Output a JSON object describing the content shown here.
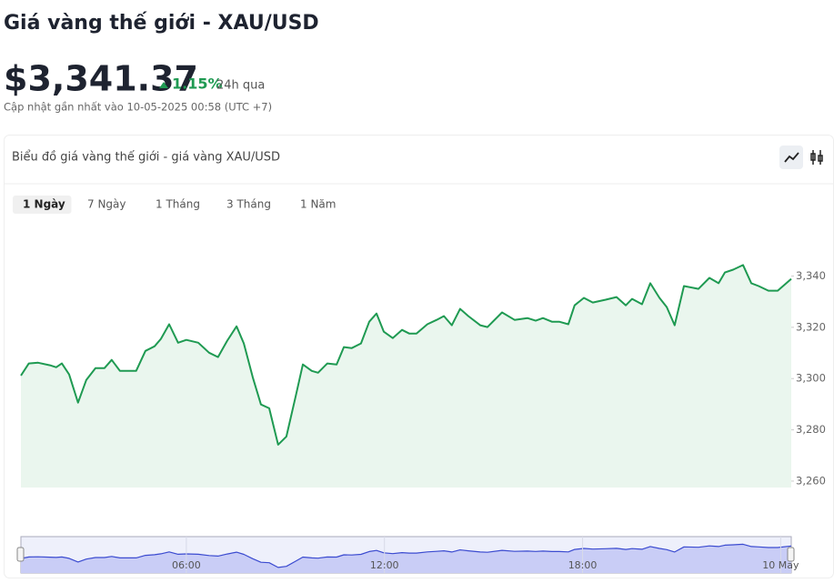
{
  "header": {
    "title": "Giá vàng thế giới - XAU/USD",
    "price": "$3,341.37",
    "change": "1.15%",
    "change_period": "24h qua",
    "updated": "Cập nhật gần nhất vào 10-05-2025 00:58 (UTC +7)"
  },
  "card": {
    "title": "Biểu đồ giá vàng thế giới - giá vàng XAU/USD",
    "tabs": [
      "1 Ngày",
      "7 Ngày",
      "1 Tháng",
      "3 Tháng",
      "1 Năm"
    ],
    "active_tab": 0
  },
  "chart_data": {
    "type": "area",
    "color": "#1f9a52",
    "fill": "#eaf6ee",
    "navigator_color": "#3b4bd0",
    "navigator_fill": "#c9cdf6",
    "x": [
      0.99,
      1.23,
      1.51,
      1.87,
      2.06,
      2.23,
      2.45,
      2.72,
      2.97,
      3.25,
      3.52,
      3.74,
      3.99,
      4.48,
      4.76,
      5.04,
      5.23,
      5.48,
      5.75,
      6.0,
      6.36,
      6.69,
      6.96,
      7.24,
      7.52,
      7.74,
      8.01,
      8.26,
      8.51,
      8.78,
      9.03,
      9.31,
      9.53,
      9.8,
      9.99,
      10.27,
      10.55,
      10.77,
      11.01,
      11.29,
      11.54,
      11.76,
      11.98,
      12.25,
      12.53,
      12.75,
      12.97,
      13.3,
      13.58,
      13.8,
      14.04,
      14.29,
      14.54,
      14.9,
      15.12,
      15.56,
      15.94,
      16.33,
      16.58,
      16.8,
      17.07,
      17.29,
      17.57,
      17.76,
      18.04,
      18.31,
      18.7,
      19.03,
      19.31,
      19.5,
      19.8,
      20.05,
      20.33,
      20.55,
      20.79,
      21.07,
      21.51,
      21.84,
      22.12,
      22.31,
      22.56,
      22.86,
      23.11,
      23.33,
      23.63,
      23.91,
      24.32
    ],
    "values": [
      3301.2,
      3305.9,
      3306.2,
      3305.2,
      3304.4,
      3305.9,
      3301.6,
      3290.6,
      3299.5,
      3304.1,
      3304.1,
      3307.3,
      3303.0,
      3303.0,
      3310.8,
      3312.6,
      3315.5,
      3321.2,
      3314.0,
      3315.1,
      3314.0,
      3310.1,
      3308.4,
      3314.8,
      3320.4,
      3313.7,
      3300.5,
      3289.9,
      3288.4,
      3274.2,
      3277.4,
      3293.1,
      3305.5,
      3303.0,
      3302.3,
      3305.9,
      3305.5,
      3312.3,
      3311.9,
      3313.7,
      3322.2,
      3325.4,
      3318.3,
      3315.8,
      3319.0,
      3317.6,
      3317.6,
      3321.2,
      3322.9,
      3324.4,
      3320.8,
      3327.2,
      3324.4,
      3320.8,
      3320.1,
      3325.8,
      3322.9,
      3323.6,
      3322.6,
      3323.6,
      3322.2,
      3322.2,
      3321.2,
      3328.6,
      3331.5,
      3329.7,
      3330.8,
      3331.8,
      3328.6,
      3331.1,
      3329.0,
      3337.2,
      3331.5,
      3327.9,
      3320.8,
      3336.1,
      3335.0,
      3339.3,
      3337.2,
      3341.4,
      3342.5,
      3344.3,
      3337.2,
      3336.1,
      3334.3,
      3334.3,
      3338.9
    ],
    "xlim": [
      0.99,
      24.32
    ],
    "ylim": [
      3257.5,
      3359
    ],
    "yticks": [
      {
        "value": 3260,
        "label": "3,260"
      },
      {
        "value": 3280,
        "label": "3,280"
      },
      {
        "value": 3300,
        "label": "3,300"
      },
      {
        "value": 3320,
        "label": "3,320"
      },
      {
        "value": 3340,
        "label": "3,340"
      }
    ],
    "xticks": [
      {
        "value": 6,
        "label": "06:00"
      },
      {
        "value": 12,
        "label": "12:00"
      },
      {
        "value": 18,
        "label": "18:00"
      },
      {
        "value": 24,
        "label": "10 May"
      }
    ]
  }
}
